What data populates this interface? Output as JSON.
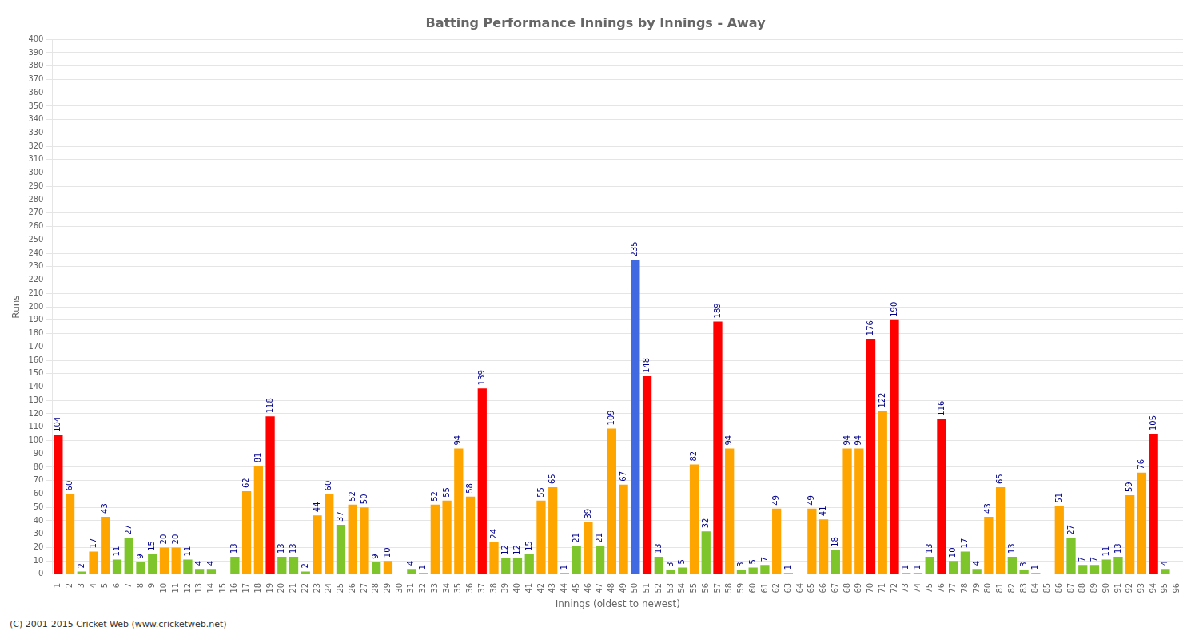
{
  "chart_data": {
    "type": "bar",
    "title": "Batting Performance Innings by Innings - Away",
    "xlabel": "Innings (oldest to newest)",
    "ylabel": "Runs",
    "annotations": [
      "(C) 2001-2015 Cricket Web (www.cricketweb.net)"
    ],
    "categories": [
      1,
      2,
      3,
      4,
      5,
      6,
      7,
      8,
      9,
      10,
      11,
      12,
      13,
      14,
      15,
      16,
      17,
      18,
      19,
      20,
      21,
      22,
      23,
      24,
      25,
      26,
      27,
      28,
      29,
      30,
      31,
      32,
      33,
      34,
      35,
      36,
      37,
      38,
      39,
      40,
      41,
      42,
      43,
      44,
      45,
      46,
      47,
      48,
      49,
      50,
      51,
      52,
      53,
      54,
      55,
      56,
      57,
      58,
      59,
      60,
      61,
      62,
      63,
      64,
      65,
      66,
      67,
      68,
      69,
      70,
      71,
      72,
      73,
      74,
      75,
      76,
      77,
      78,
      79,
      80,
      81,
      82,
      83,
      84,
      85,
      86,
      87,
      88,
      89,
      90,
      91,
      92,
      93,
      94,
      95,
      96
    ],
    "values": [
      104,
      60,
      2,
      17,
      43,
      11,
      27,
      9,
      15,
      20,
      20,
      11,
      4,
      4,
      0,
      13,
      62,
      81,
      118,
      13,
      13,
      2,
      44,
      60,
      37,
      52,
      50,
      9,
      10,
      0,
      4,
      1,
      52,
      55,
      94,
      58,
      139,
      24,
      12,
      12,
      15,
      55,
      65,
      1,
      21,
      39,
      21,
      109,
      67,
      235,
      148,
      13,
      3,
      5,
      82,
      32,
      189,
      94,
      3,
      5,
      7,
      49,
      1,
      0,
      49,
      41,
      18,
      94,
      94,
      176,
      122,
      190,
      1,
      1,
      13,
      116,
      10,
      17,
      4,
      43,
      65,
      13,
      3,
      1,
      0,
      51,
      27,
      7,
      7,
      11,
      13,
      59,
      76,
      105,
      4,
      0
    ],
    "value_labels": [
      "104",
      "60",
      "2",
      "17",
      "43",
      "11",
      "27",
      "9",
      "15",
      "20",
      "20",
      "11",
      "4",
      "4",
      null,
      "13",
      "62",
      "81",
      "118",
      "13",
      "13",
      "2",
      "44",
      "60",
      "37",
      "52",
      "50",
      "9",
      "10",
      null,
      "4",
      "1",
      "52",
      "55",
      "94",
      "58",
      "139",
      "24",
      "12",
      "12",
      "15",
      "55",
      "65",
      "1",
      "21",
      "39",
      "21",
      "109",
      "67",
      "235",
      "148",
      "13",
      "3",
      "5",
      "82",
      "32",
      "189",
      "94",
      "3",
      "5",
      "7",
      "49",
      "1",
      null,
      "49",
      "41",
      "18",
      "94",
      "94",
      "176",
      "122",
      "190",
      "1",
      "1",
      "13",
      "116",
      "10",
      "17",
      "4",
      "43",
      "65",
      "13",
      "3",
      "1",
      null,
      "51",
      "27",
      "7",
      "7",
      "11",
      "13",
      "59",
      "76",
      "105",
      "4",
      null
    ],
    "data_labels": true,
    "colors": [
      "#ff0000",
      "#ffa500",
      "#7dc52a",
      "#ffa500",
      "#ffa500",
      "#7dc52a",
      "#7dc52a",
      "#7dc52a",
      "#7dc52a",
      "#ffa500",
      "#ffa500",
      "#7dc52a",
      "#7dc52a",
      "#7dc52a",
      "#7dc52a",
      "#7dc52a",
      "#ffa500",
      "#ffa500",
      "#ff0000",
      "#7dc52a",
      "#7dc52a",
      "#7dc52a",
      "#ffa500",
      "#ffa500",
      "#7dc52a",
      "#ffa500",
      "#ffa500",
      "#7dc52a",
      "#ffa500",
      "#7dc52a",
      "#7dc52a",
      "#7dc52a",
      "#ffa500",
      "#ffa500",
      "#ffa500",
      "#ffa500",
      "#ff0000",
      "#ffa500",
      "#7dc52a",
      "#7dc52a",
      "#7dc52a",
      "#ffa500",
      "#ffa500",
      "#7dc52a",
      "#7dc52a",
      "#ffa500",
      "#7dc52a",
      "#ffa500",
      "#ffa500",
      "#4169e1",
      "#ff0000",
      "#7dc52a",
      "#7dc52a",
      "#7dc52a",
      "#ffa500",
      "#7dc52a",
      "#ff0000",
      "#ffa500",
      "#7dc52a",
      "#7dc52a",
      "#7dc52a",
      "#ffa500",
      "#7dc52a",
      "#7dc52a",
      "#ffa500",
      "#ffa500",
      "#7dc52a",
      "#ffa500",
      "#ffa500",
      "#ff0000",
      "#ffa500",
      "#ff0000",
      "#7dc52a",
      "#7dc52a",
      "#7dc52a",
      "#ff0000",
      "#7dc52a",
      "#7dc52a",
      "#7dc52a",
      "#ffa500",
      "#ffa500",
      "#7dc52a",
      "#7dc52a",
      "#7dc52a",
      "#7dc52a",
      "#ffa500",
      "#7dc52a",
      "#7dc52a",
      "#7dc52a",
      "#7dc52a",
      "#7dc52a",
      "#ffa500",
      "#ffa500",
      "#ff0000",
      "#7dc52a",
      "#7dc52a"
    ],
    "ylim": [
      0,
      400
    ],
    "yticks": [
      0,
      10,
      20,
      30,
      40,
      50,
      60,
      70,
      80,
      90,
      100,
      110,
      120,
      130,
      140,
      150,
      160,
      170,
      180,
      190,
      200,
      210,
      220,
      230,
      240,
      250,
      260,
      270,
      280,
      290,
      300,
      310,
      320,
      330,
      340,
      350,
      360,
      370,
      380,
      390,
      400
    ],
    "grid": true
  }
}
